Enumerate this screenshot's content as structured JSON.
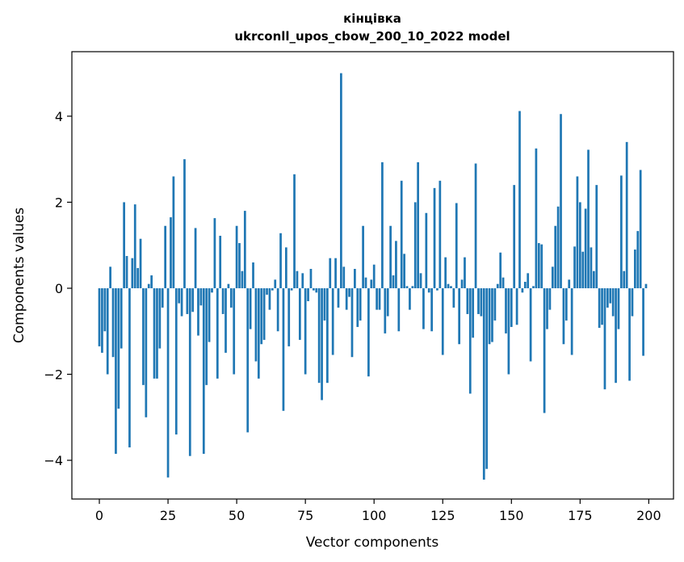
{
  "chart_data": {
    "type": "bar",
    "title": "кінцівка",
    "subtitle": "ukrconll_upos_cbow_200_10_2022 model",
    "xlabel": "Vector components",
    "ylabel": "Components values",
    "xlim": [
      -10,
      209
    ],
    "ylim": [
      -4.9,
      5.5
    ],
    "xticks": [
      0,
      25,
      50,
      75,
      100,
      125,
      150,
      175,
      200
    ],
    "yticks": [
      -4,
      -2,
      0,
      2,
      4
    ],
    "grid": false,
    "bar_color": "#1f77b4",
    "values": [
      -1.35,
      -1.5,
      -1.0,
      -2.0,
      0.5,
      -1.6,
      -3.85,
      -2.8,
      -1.4,
      2.0,
      0.75,
      -3.7,
      0.7,
      1.95,
      0.47,
      1.15,
      -2.25,
      -3.0,
      0.1,
      0.3,
      -2.1,
      -2.1,
      -1.4,
      -0.45,
      1.45,
      -4.4,
      1.65,
      2.6,
      -3.4,
      -0.35,
      -0.65,
      3.0,
      -0.6,
      -3.9,
      -0.55,
      1.4,
      -1.1,
      -0.4,
      -3.85,
      -2.25,
      -1.25,
      -0.1,
      1.63,
      -2.1,
      1.22,
      -0.6,
      -1.5,
      0.1,
      -0.45,
      -2.0,
      1.45,
      1.05,
      0.4,
      1.8,
      -3.35,
      -0.95,
      0.6,
      -1.7,
      -2.1,
      -1.3,
      -1.2,
      -0.15,
      -0.5,
      -0.05,
      0.2,
      -1.0,
      1.28,
      -2.85,
      0.95,
      -1.35,
      -0.05,
      2.65,
      0.4,
      -1.2,
      0.35,
      -2.0,
      -0.3,
      0.45,
      -0.05,
      -0.1,
      -2.2,
      -2.6,
      -0.75,
      -2.2,
      0.7,
      -1.55,
      0.7,
      -0.45,
      5.0,
      0.5,
      -0.5,
      -0.2,
      -1.6,
      0.45,
      -0.9,
      -0.75,
      1.45,
      0.25,
      -2.05,
      0.2,
      0.55,
      -0.5,
      -0.5,
      2.93,
      -1.05,
      -0.65,
      1.45,
      0.3,
      1.1,
      -1.0,
      2.5,
      0.8,
      0.05,
      -0.5,
      0.05,
      2.0,
      2.93,
      0.35,
      -0.95,
      1.75,
      -0.1,
      -1.0,
      2.33,
      -0.05,
      2.5,
      -1.55,
      0.72,
      0.1,
      0.05,
      -0.45,
      1.98,
      -1.3,
      0.2,
      0.72,
      -0.6,
      -2.45,
      -1.15,
      2.9,
      -0.6,
      -0.65,
      -4.45,
      -4.2,
      -1.3,
      -1.25,
      -0.75,
      0.1,
      0.83,
      0.25,
      -1.05,
      -2.0,
      -0.9,
      2.4,
      -0.85,
      4.12,
      -0.1,
      0.15,
      0.35,
      -1.7,
      0.05,
      3.25,
      1.05,
      1.02,
      -2.9,
      -0.95,
      -0.5,
      0.5,
      1.45,
      1.9,
      4.05,
      -1.3,
      -0.75,
      0.2,
      -1.55,
      0.97,
      2.6,
      2.0,
      0.85,
      1.85,
      3.22,
      0.95,
      0.4,
      2.4,
      -0.92,
      -0.85,
      -2.35,
      -0.45,
      -0.35,
      -0.65,
      -2.2,
      -0.95,
      2.62,
      0.4,
      3.4,
      -2.15,
      -0.65,
      0.9,
      1.33,
      2.75,
      -1.57,
      0.1
    ]
  }
}
